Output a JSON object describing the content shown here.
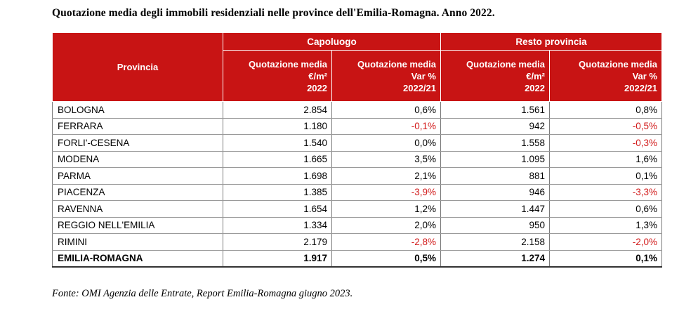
{
  "title": "Quotazione media degli immobili residenziali nelle province dell'Emilia-Romagna. Anno 2022.",
  "table": {
    "province_header": "Provincia",
    "group_headers": [
      "Capoluogo",
      "Resto provincia"
    ],
    "sub_headers": [
      "Quotazione media\n€/m²\n2022",
      "Quotazione media\nVar %\n2022/21",
      "Quotazione media\n€/m²\n2022",
      "Quotazione media\nVar %\n2022/21"
    ],
    "rows": [
      {
        "name": "BOLOGNA",
        "cap_price": "2.854",
        "cap_var": "0,6%",
        "rest_price": "1.561",
        "rest_var": "0,8%"
      },
      {
        "name": "FERRARA",
        "cap_price": "1.180",
        "cap_var": "-0,1%",
        "rest_price": "942",
        "rest_var": "-0,5%"
      },
      {
        "name": "FORLI'-CESENA",
        "cap_price": "1.540",
        "cap_var": "0,0%",
        "rest_price": "1.558",
        "rest_var": "-0,3%"
      },
      {
        "name": "MODENA",
        "cap_price": "1.665",
        "cap_var": "3,5%",
        "rest_price": "1.095",
        "rest_var": "1,6%"
      },
      {
        "name": "PARMA",
        "cap_price": "1.698",
        "cap_var": "2,1%",
        "rest_price": "881",
        "rest_var": "0,1%"
      },
      {
        "name": "PIACENZA",
        "cap_price": "1.385",
        "cap_var": "-3,9%",
        "rest_price": "946",
        "rest_var": "-3,3%"
      },
      {
        "name": "RAVENNA",
        "cap_price": "1.654",
        "cap_var": "1,2%",
        "rest_price": "1.447",
        "rest_var": "0,6%"
      },
      {
        "name": "REGGIO NELL'EMILIA",
        "cap_price": "1.334",
        "cap_var": "2,0%",
        "rest_price": "950",
        "rest_var": "1,3%"
      },
      {
        "name": "RIMINI",
        "cap_price": "2.179",
        "cap_var": "-2,8%",
        "rest_price": "2.158",
        "rest_var": "-2,0%"
      }
    ],
    "total": {
      "name": "EMILIA-ROMAGNA",
      "cap_price": "1.917",
      "cap_var": "0,5%",
      "rest_price": "1.274",
      "rest_var": "0,1%"
    }
  },
  "colors": {
    "header_bg": "#c81414",
    "negative": "#d21a1a"
  },
  "source": "Fonte: OMI Agenzia delle Entrate, Report Emilia-Romagna giugno 2023."
}
